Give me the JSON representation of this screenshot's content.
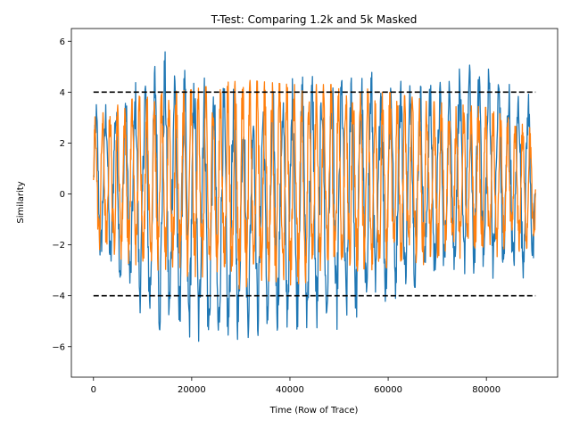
{
  "chart_data": {
    "type": "line",
    "title": "T-Test: Comparing 1.2k and 5k Masked",
    "xlabel": "Time (Row of Trace)",
    "ylabel": "Similarity",
    "xlim": [
      -4500,
      94500
    ],
    "ylim": [
      -7.2,
      6.5
    ],
    "x_ticks": [
      0,
      20000,
      40000,
      60000,
      80000
    ],
    "x_tick_labels": [
      "0",
      "20000",
      "40000",
      "60000",
      "80000"
    ],
    "y_ticks": [
      -6,
      -4,
      -2,
      0,
      2,
      4,
      6
    ],
    "y_tick_labels": [
      "−6",
      "−4",
      "−2",
      "0",
      "2",
      "4",
      "6"
    ],
    "grid": false,
    "series": [
      {
        "color": "#1f77b4",
        "x_range": [
          0,
          90000
        ],
        "oscillation_period": 2000,
        "envelope": {
          "x": [
            0,
            5000,
            10000,
            14000,
            18000,
            22000,
            26000,
            30000,
            35000,
            40000,
            45000,
            50000,
            55000,
            60000,
            65000,
            70000,
            75000,
            80000,
            85000,
            90000
          ],
          "upper": [
            3.5,
            3.8,
            4.6,
            5.7,
            4.9,
            4.6,
            4.3,
            4.0,
            3.8,
            4.5,
            4.8,
            4.9,
            5.0,
            4.9,
            4.5,
            4.3,
            5.0,
            5.2,
            4.5,
            3.8
          ],
          "lower": [
            -2.5,
            -3.5,
            -4.8,
            -5.5,
            -5.8,
            -6.1,
            -6.5,
            -5.7,
            -5.5,
            -5.2,
            -5.6,
            -5.4,
            -4.9,
            -4.3,
            -3.7,
            -3.4,
            -3.3,
            -3.3,
            -3.6,
            -3.0
          ]
        }
      },
      {
        "color": "#ff7f0e",
        "x_range": [
          0,
          90000
        ],
        "oscillation_period": 1500,
        "envelope": {
          "x": [
            0,
            5000,
            10000,
            20000,
            30000,
            40000,
            50000,
            60000,
            70000,
            80000,
            90000
          ],
          "upper": [
            3.0,
            3.5,
            3.9,
            4.1,
            4.5,
            4.3,
            4.3,
            4.0,
            3.6,
            3.4,
            2.5
          ],
          "lower": [
            -2.6,
            -3.0,
            -3.4,
            -3.8,
            -4.3,
            -4.2,
            -3.9,
            -3.5,
            -3.2,
            -3.0,
            -2.5
          ]
        }
      },
      {
        "color": "#000000",
        "dashed": true,
        "x": [
          0,
          90000
        ],
        "values": [
          4,
          4
        ]
      },
      {
        "color": "#000000",
        "dashed": true,
        "x": [
          0,
          90000
        ],
        "values": [
          -4,
          -4
        ]
      }
    ]
  }
}
